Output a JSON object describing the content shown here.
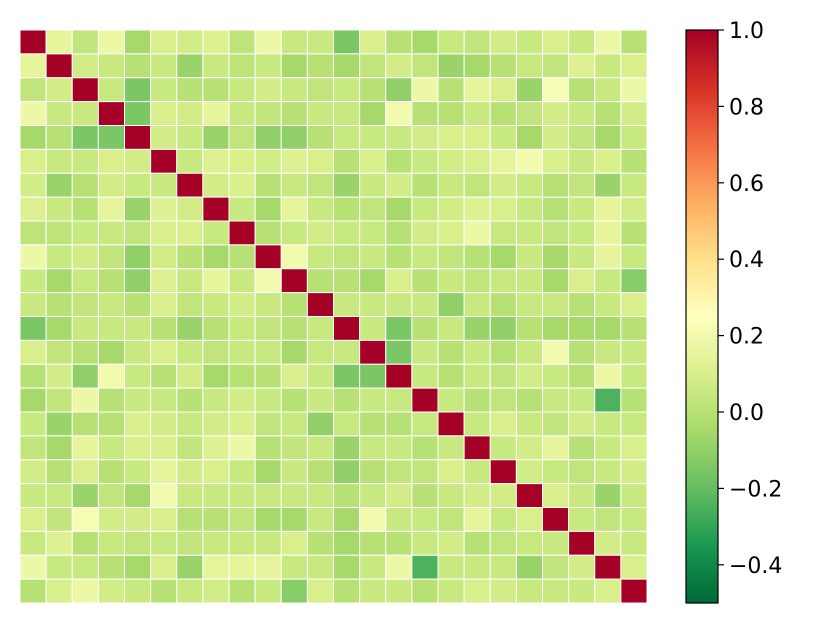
{
  "chart_data": {
    "type": "heatmap",
    "title": "",
    "xlabel": "",
    "ylabel": "",
    "x_tick_labels": [],
    "y_tick_labels": [],
    "colormap": "RdYlGn_r",
    "vmin": -0.5,
    "vmax": 1.0,
    "colorbar": {
      "ticks": [
        -0.4,
        -0.2,
        0.0,
        0.2,
        0.4,
        0.6,
        0.8,
        1.0
      ],
      "tick_labels": [
        "−0.4",
        "−0.2",
        "0.0",
        "0.2",
        "0.4",
        "0.6",
        "0.8",
        "1.0"
      ]
    },
    "gridlines": "white",
    "matrix": [
      [
        1.0,
        0.15,
        0.03,
        0.18,
        -0.05,
        0.1,
        0.08,
        0.12,
        0.02,
        0.18,
        0.05,
        0.05,
        -0.15,
        0.1,
        0.0,
        -0.05,
        0.05,
        0.03,
        0.08,
        0.05,
        0.1,
        0.05,
        0.18,
        0.0
      ],
      [
        0.15,
        1.0,
        0.08,
        0.05,
        0.0,
        0.05,
        -0.08,
        0.05,
        0.02,
        0.05,
        -0.05,
        0.0,
        -0.05,
        0.03,
        0.08,
        0.03,
        -0.08,
        -0.05,
        0.0,
        0.05,
        0.03,
        0.12,
        0.05,
        0.1
      ],
      [
        0.03,
        0.08,
        1.0,
        0.05,
        -0.15,
        0.05,
        0.0,
        0.0,
        0.05,
        0.08,
        0.05,
        0.03,
        0.05,
        0.0,
        -0.1,
        0.18,
        0.0,
        0.15,
        0.1,
        -0.08,
        0.22,
        0.0,
        0.05,
        0.18
      ],
      [
        0.18,
        0.05,
        0.05,
        1.0,
        -0.15,
        0.1,
        0.08,
        0.15,
        0.05,
        0.03,
        0.0,
        0.05,
        0.05,
        -0.05,
        0.2,
        0.0,
        0.0,
        0.05,
        0.0,
        0.03,
        0.08,
        0.05,
        0.0,
        0.08
      ],
      [
        -0.05,
        0.0,
        -0.15,
        -0.15,
        1.0,
        0.08,
        0.05,
        -0.08,
        0.03,
        -0.1,
        -0.1,
        0.0,
        0.05,
        0.05,
        0.05,
        0.08,
        0.1,
        0.1,
        0.05,
        -0.05,
        0.08,
        0.03,
        -0.05,
        0.05
      ],
      [
        0.1,
        0.05,
        0.05,
        0.1,
        0.08,
        1.0,
        0.05,
        0.12,
        0.1,
        0.08,
        0.12,
        0.1,
        0.0,
        0.1,
        0.0,
        0.05,
        0.08,
        0.1,
        0.15,
        0.2,
        0.1,
        0.05,
        0.1,
        0.0
      ],
      [
        0.08,
        -0.08,
        0.0,
        0.08,
        0.05,
        0.05,
        1.0,
        0.08,
        0.1,
        0.0,
        0.05,
        0.03,
        -0.08,
        0.05,
        0.08,
        0.0,
        0.05,
        0.03,
        0.08,
        0.05,
        0.0,
        0.03,
        -0.08,
        0.05
      ],
      [
        0.12,
        0.05,
        0.0,
        0.15,
        -0.08,
        0.12,
        0.08,
        1.0,
        0.05,
        -0.05,
        0.15,
        0.05,
        0.0,
        0.03,
        -0.05,
        0.05,
        0.08,
        0.12,
        0.1,
        0.05,
        0.0,
        0.05,
        0.15,
        0.08
      ],
      [
        0.02,
        0.02,
        0.05,
        0.05,
        0.03,
        0.1,
        0.1,
        0.05,
        1.0,
        0.0,
        0.05,
        0.08,
        0.05,
        0.05,
        0.0,
        0.08,
        0.1,
        0.18,
        0.05,
        0.05,
        0.03,
        0.05,
        0.15,
        0.0
      ],
      [
        0.18,
        0.05,
        0.08,
        0.03,
        -0.1,
        0.08,
        0.0,
        -0.05,
        0.0,
        1.0,
        0.2,
        0.05,
        0.03,
        0.05,
        0.0,
        0.05,
        0.03,
        0.0,
        -0.05,
        0.05,
        -0.05,
        0.05,
        0.15,
        0.05
      ],
      [
        0.05,
        -0.05,
        0.05,
        0.0,
        -0.1,
        0.12,
        0.05,
        0.15,
        0.05,
        0.2,
        1.0,
        0.0,
        0.0,
        -0.05,
        0.1,
        0.0,
        0.05,
        0.03,
        0.05,
        0.05,
        -0.05,
        0.1,
        0.05,
        -0.12
      ],
      [
        0.05,
        0.0,
        0.03,
        0.05,
        0.0,
        0.1,
        0.03,
        0.05,
        0.08,
        0.05,
        0.0,
        1.0,
        0.05,
        0.05,
        0.05,
        0.05,
        -0.1,
        0.05,
        0.0,
        0.05,
        0.05,
        0.0,
        0.05,
        0.1
      ],
      [
        -0.15,
        -0.05,
        0.05,
        0.05,
        0.05,
        0.0,
        -0.08,
        0.0,
        0.05,
        0.03,
        0.0,
        0.05,
        1.0,
        0.05,
        -0.15,
        0.0,
        0.05,
        -0.08,
        -0.1,
        0.0,
        -0.05,
        -0.05,
        -0.05,
        0.0
      ],
      [
        0.1,
        0.03,
        0.0,
        -0.05,
        0.05,
        0.1,
        0.05,
        0.03,
        0.05,
        0.05,
        -0.05,
        0.05,
        0.05,
        1.0,
        -0.15,
        0.05,
        0.0,
        0.05,
        0.0,
        0.05,
        0.2,
        0.0,
        0.05,
        0.05
      ],
      [
        0.0,
        0.08,
        -0.1,
        0.2,
        0.05,
        0.0,
        0.08,
        -0.05,
        0.0,
        0.0,
        0.1,
        0.05,
        -0.15,
        -0.15,
        1.0,
        0.05,
        0.0,
        0.05,
        0.03,
        0.08,
        0.05,
        0.0,
        0.18,
        0.05
      ],
      [
        -0.05,
        0.03,
        0.18,
        0.0,
        0.05,
        0.05,
        0.0,
        0.05,
        0.08,
        0.05,
        0.0,
        0.05,
        0.0,
        0.05,
        0.05,
        1.0,
        0.05,
        0.0,
        0.03,
        0.0,
        0.05,
        0.05,
        -0.25,
        0.0
      ],
      [
        0.05,
        -0.08,
        0.0,
        0.0,
        0.1,
        0.08,
        0.05,
        0.08,
        0.1,
        0.03,
        0.05,
        -0.1,
        0.05,
        0.0,
        0.0,
        0.05,
        1.0,
        0.05,
        0.1,
        0.05,
        0.03,
        0.08,
        0.05,
        0.05
      ],
      [
        0.03,
        -0.05,
        0.15,
        0.05,
        0.1,
        0.1,
        0.03,
        0.12,
        0.18,
        0.0,
        0.03,
        0.05,
        -0.08,
        0.05,
        0.05,
        0.0,
        0.05,
        1.0,
        0.05,
        0.08,
        0.15,
        0.0,
        0.05,
        0.1
      ],
      [
        0.08,
        0.0,
        0.1,
        0.0,
        0.05,
        0.15,
        0.08,
        0.1,
        0.05,
        -0.05,
        0.05,
        0.0,
        -0.1,
        0.0,
        0.03,
        0.03,
        0.1,
        0.05,
        1.0,
        0.08,
        0.05,
        0.03,
        0.05,
        0.08
      ],
      [
        0.05,
        0.05,
        -0.08,
        0.03,
        -0.05,
        0.2,
        0.05,
        0.05,
        0.05,
        0.05,
        0.05,
        0.05,
        0.0,
        0.05,
        0.08,
        0.0,
        0.05,
        0.08,
        0.08,
        1.0,
        0.1,
        0.05,
        -0.08,
        0.05
      ],
      [
        0.1,
        0.03,
        0.22,
        0.08,
        0.08,
        0.1,
        0.0,
        0.0,
        0.03,
        -0.05,
        -0.05,
        0.05,
        -0.05,
        0.2,
        0.05,
        0.05,
        0.03,
        0.15,
        0.05,
        0.1,
        1.0,
        0.05,
        0.03,
        0.05
      ],
      [
        0.05,
        0.12,
        0.0,
        0.05,
        0.03,
        0.05,
        0.03,
        0.05,
        0.05,
        0.05,
        0.1,
        0.0,
        -0.05,
        0.0,
        0.0,
        0.05,
        0.08,
        0.0,
        0.03,
        0.05,
        0.05,
        1.0,
        0.08,
        0.05
      ],
      [
        0.18,
        0.05,
        0.05,
        0.0,
        -0.05,
        0.1,
        -0.08,
        0.15,
        0.15,
        0.15,
        0.05,
        0.05,
        -0.05,
        0.05,
        0.18,
        -0.25,
        0.05,
        0.05,
        0.05,
        -0.08,
        0.03,
        0.08,
        1.0,
        0.1
      ],
      [
        0.0,
        0.1,
        0.18,
        0.08,
        0.05,
        0.0,
        0.05,
        0.08,
        0.0,
        0.05,
        -0.12,
        0.1,
        0.0,
        0.05,
        0.05,
        0.0,
        0.05,
        0.1,
        0.08,
        0.05,
        0.05,
        0.05,
        0.1,
        1.0
      ]
    ]
  },
  "colors": {
    "cell_border": "#ffffff",
    "colorbar_border": "#000000",
    "text": "#000000"
  }
}
